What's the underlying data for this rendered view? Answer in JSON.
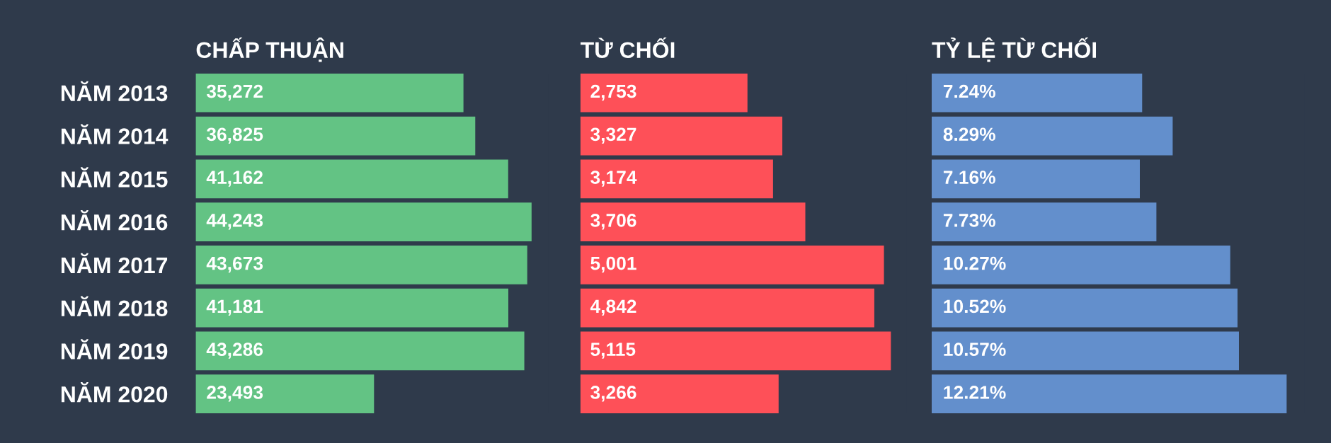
{
  "chart_data": [
    {
      "type": "bar",
      "orientation": "horizontal",
      "title": "CHẤP THUẬN",
      "tick_labels": "y",
      "categories": [
        "NĂM 2013",
        "NĂM 2014",
        "NĂM 2015",
        "NĂM 2016",
        "NĂM 2017",
        "NĂM 2018",
        "NĂM 2019",
        "NĂM 2020"
      ],
      "color": "#63c384",
      "values": [
        35272,
        36825,
        41162,
        44243,
        43673,
        41181,
        43286,
        23493
      ],
      "value_labels": [
        "35,272",
        "36,825",
        "41,162",
        "44,243",
        "43,673",
        "41,181",
        "43,286",
        "23,493"
      ]
    },
    {
      "type": "bar",
      "orientation": "horizontal",
      "title": "TỪ CHỐI",
      "color": "#fe5058",
      "values": [
        2753,
        3327,
        3174,
        3706,
        5001,
        4842,
        5115,
        3266
      ],
      "value_labels": [
        "2,753",
        "3,327",
        "3,174",
        "3,706",
        "5,001",
        "4,842",
        "5,115",
        "3,266"
      ]
    },
    {
      "type": "bar",
      "orientation": "horizontal",
      "title": "TỶ LỆ TỪ CHỐI",
      "color": "#638fcc",
      "values": [
        7.24,
        8.29,
        7.16,
        7.73,
        10.27,
        10.52,
        10.57,
        12.21
      ],
      "value_labels": [
        "7.24%",
        "8.29%",
        "7.16%",
        "7.73%",
        "10.27%",
        "10.52%",
        "10.57%",
        "12.21%"
      ]
    }
  ]
}
